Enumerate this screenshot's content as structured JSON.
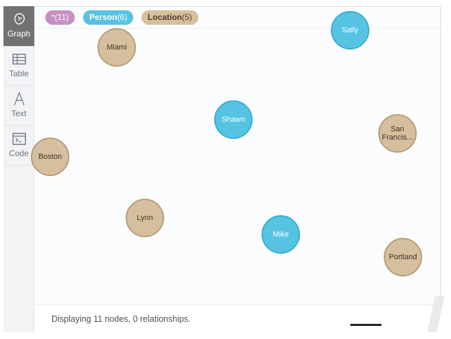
{
  "sidebar": {
    "items": [
      {
        "label": "Graph",
        "icon": "graph-icon",
        "active": true
      },
      {
        "label": "Table",
        "icon": "table-icon",
        "active": false
      },
      {
        "label": "Text",
        "icon": "text-icon",
        "active": false
      },
      {
        "label": "Code",
        "icon": "code-icon",
        "active": false
      }
    ]
  },
  "legend": {
    "all": {
      "name": "*",
      "count": "(11)"
    },
    "person": {
      "name": "Person",
      "count": "(6)"
    },
    "location": {
      "name": "Location",
      "count": "(5)"
    }
  },
  "colors": {
    "person": "#56c3e3",
    "location": "#d6bf9e",
    "all": "#c78fc4",
    "sidebar_active": "#727272"
  },
  "nodes": {
    "miami": {
      "label": "Miami",
      "type": "Location"
    },
    "sally": {
      "label": "Sally",
      "type": "Person"
    },
    "shawn": {
      "label": "Shawn",
      "type": "Person"
    },
    "san_francisco": {
      "label": "San Francis...",
      "type": "Location"
    },
    "boston": {
      "label": "Boston",
      "type": "Location"
    },
    "lynn": {
      "label": "Lynn",
      "type": "Location"
    },
    "mike": {
      "label": "Mike",
      "type": "Person"
    },
    "portland": {
      "label": "Portland",
      "type": "Location"
    }
  },
  "footer": {
    "status": "Displaying 11 nodes, 0 relationships."
  }
}
